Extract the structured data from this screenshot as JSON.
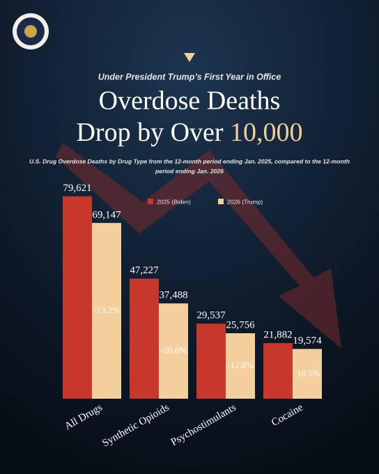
{
  "chart_data": {
    "type": "bar",
    "subtitle": "Under President Trump’s First Year in Office",
    "title": [
      "Overdose Deaths",
      "Drop by Over",
      "10,000"
    ],
    "description": [
      "U.S. Drug Overdose Deaths by Drug Type from the 12-month period ending Jan. 2025, compared to the 12-month",
      "period ending Jan. 2026"
    ],
    "categories": [
      "All Drugs",
      "Synthetic Opioids",
      "Psychostimulants",
      "Cocaine"
    ],
    "series": [
      {
        "name": "2025 (Biden)",
        "color": "#c8372c",
        "values": [
          79621,
          47227,
          29537,
          21882
        ],
        "value_labels": [
          "79,621",
          "47,227",
          "29,537",
          "21,882"
        ]
      },
      {
        "name": "2026 (Trump)",
        "color": "#f2cf9c",
        "values": [
          69147,
          37488,
          25756,
          19574
        ],
        "value_labels": [
          "69,147",
          "37,488",
          "25,756",
          "19,574"
        ]
      }
    ],
    "annotations": [
      "-13.2%",
      "-20.6%",
      "-12.8%",
      "-10.5%"
    ],
    "ylim": [
      0,
      85000
    ],
    "grid": false
  }
}
